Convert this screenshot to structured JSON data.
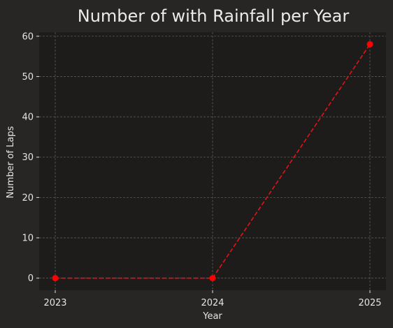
{
  "colors": {
    "figure_bg": "#282624",
    "plot_bg": "#1e1c1b",
    "grid": "#5a5855",
    "line": "#e01414",
    "marker": "#ff0000",
    "text": "#e6e4e1"
  },
  "chart_data": {
    "type": "line",
    "title": "Number of with Rainfall per Year",
    "xlabel": "Year",
    "ylabel": "Number of Laps",
    "x": [
      "2023",
      "2024",
      "2025"
    ],
    "series": [
      {
        "values": [
          0,
          0,
          58
        ],
        "line_style": "dashed",
        "marker": "circle"
      }
    ],
    "xlim": [
      "2023",
      "2025"
    ],
    "ylim": [
      -3,
      61
    ],
    "yticks": [
      0,
      10,
      20,
      30,
      40,
      50,
      60
    ],
    "grid": true
  }
}
